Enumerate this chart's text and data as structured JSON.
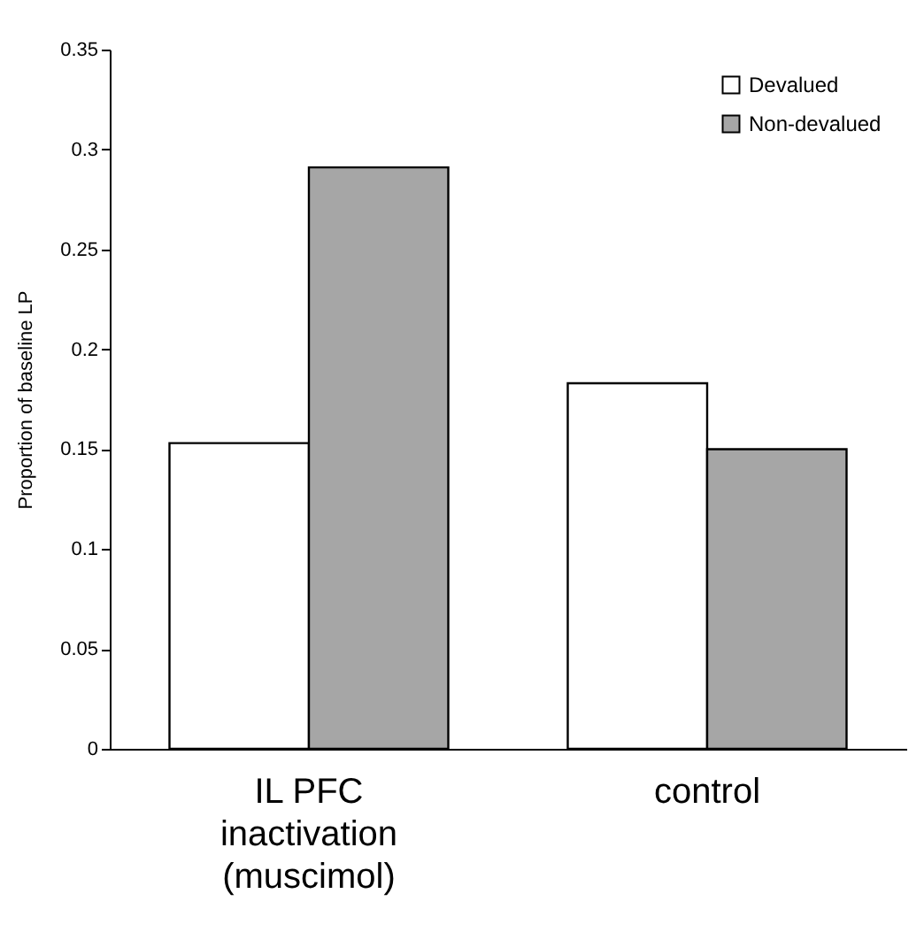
{
  "chart_data": {
    "type": "bar",
    "ylabel": "Proportion of baseline LP",
    "categories": [
      "IL PFC inactivation (muscimol)",
      "control"
    ],
    "series": [
      {
        "name": "Devalued",
        "color": "#ffffff",
        "values": [
          0.153,
          0.183
        ]
      },
      {
        "name": "Non-devalued",
        "color": "#a6a6a6",
        "values": [
          0.291,
          0.15
        ]
      }
    ],
    "ylim": [
      0,
      0.35
    ],
    "yticks": [
      0,
      0.05,
      0.1,
      0.15,
      0.2,
      0.25,
      0.3,
      0.35
    ],
    "grid": false,
    "legend": "top right"
  }
}
